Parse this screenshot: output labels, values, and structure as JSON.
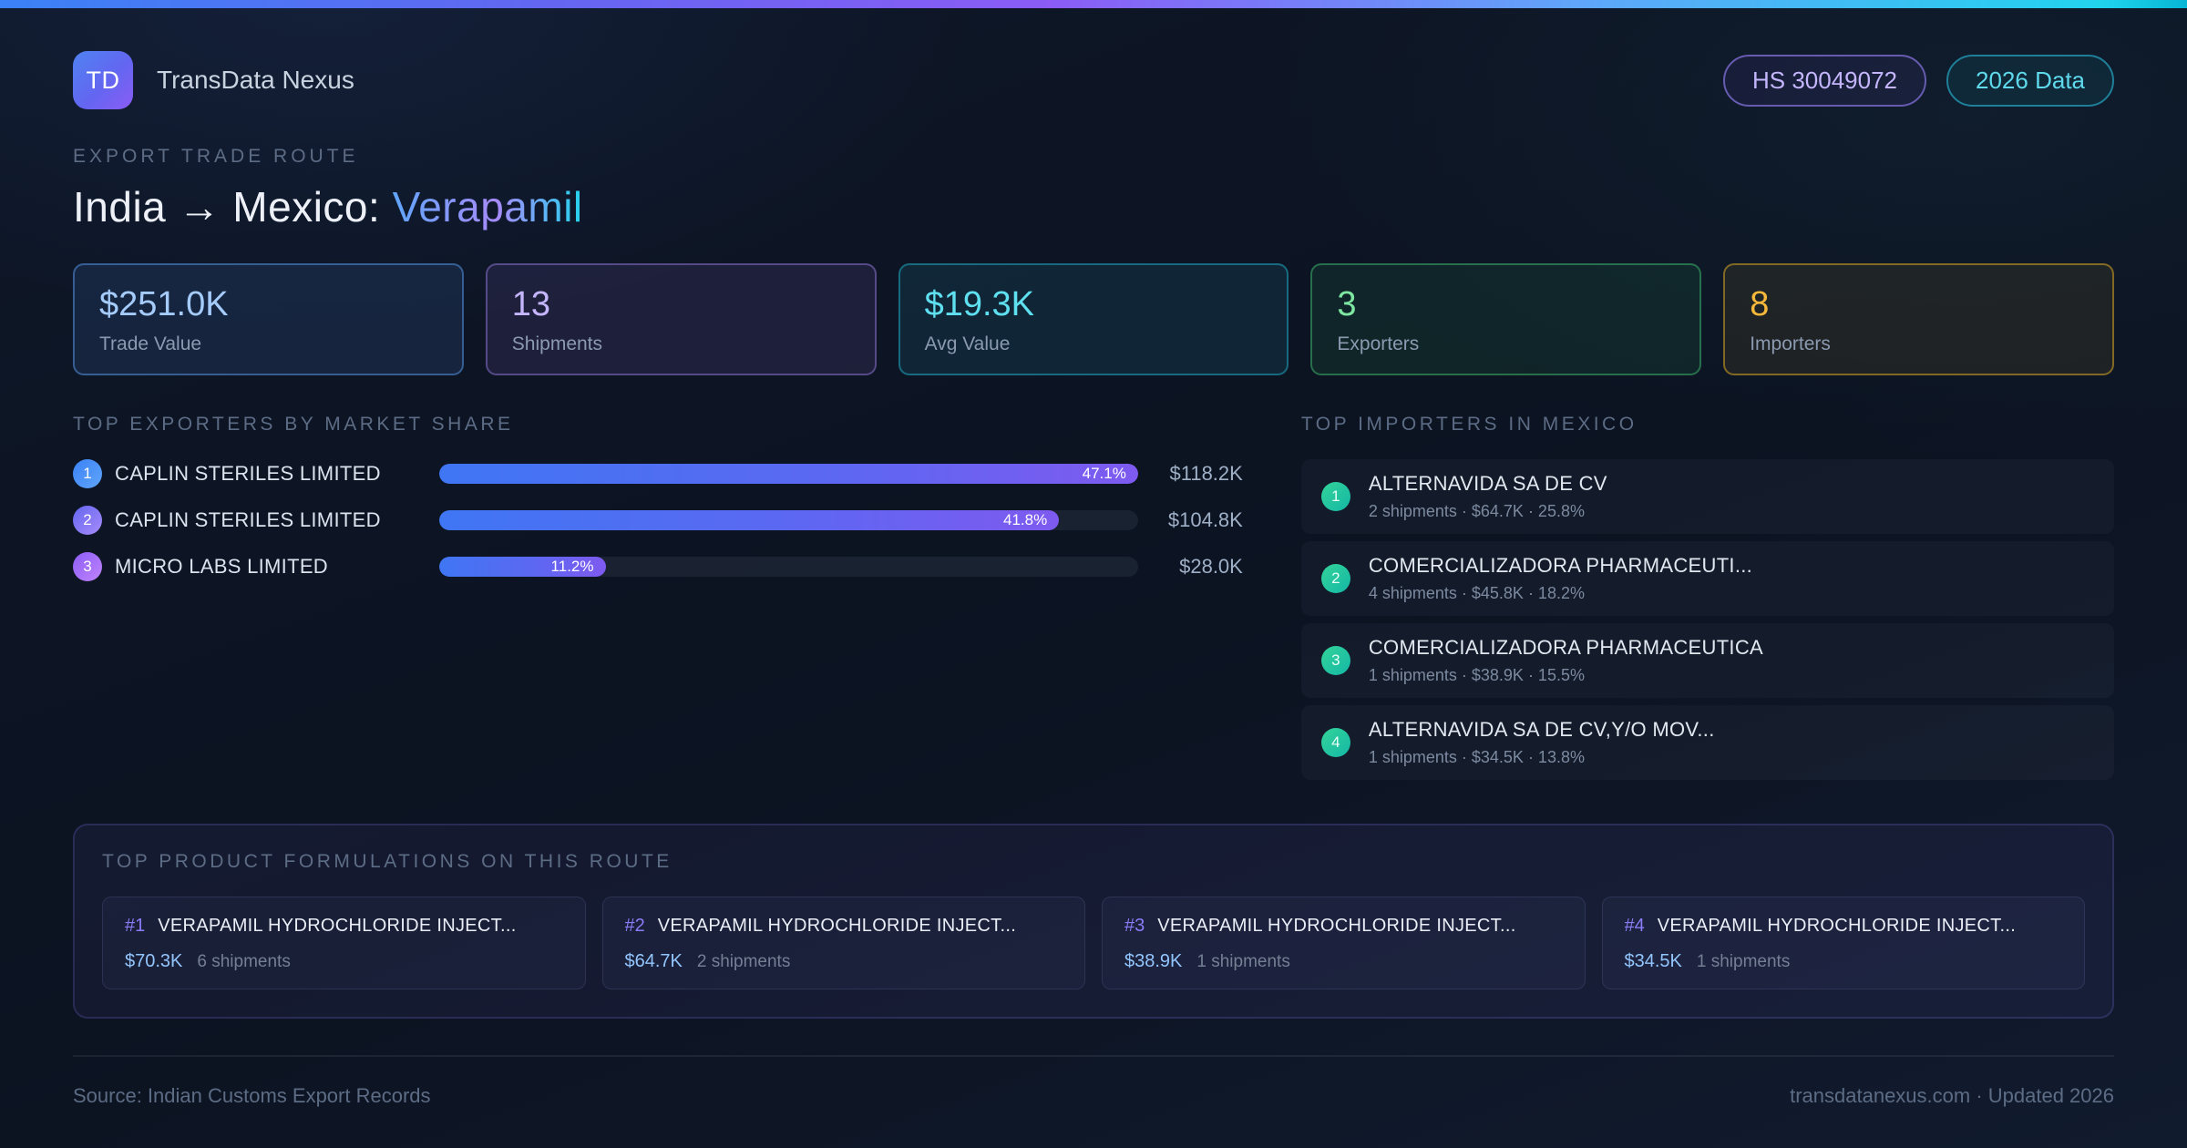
{
  "brand": {
    "logo_text": "TD",
    "name": "TransData Nexus"
  },
  "header_badges": {
    "hs_code": "HS 30049072",
    "year": "2026 Data"
  },
  "route": {
    "eyebrow": "EXPORT TRADE ROUTE",
    "title_prefix": "India → Mexico: ",
    "title_product": "Verapamil"
  },
  "stats": [
    {
      "value": "$251.0K",
      "label": "Trade Value",
      "accent": "#a4cbf9"
    },
    {
      "value": "13",
      "label": "Shipments",
      "accent": "#c4b5fd"
    },
    {
      "value": "$19.3K",
      "label": "Avg Value",
      "accent": "#5fe0f0"
    },
    {
      "value": "3",
      "label": "Exporters",
      "accent": "#7ee8a2"
    },
    {
      "value": "8",
      "label": "Importers",
      "accent": "#f6b83a"
    }
  ],
  "exporters": {
    "heading": "TOP EXPORTERS BY MARKET SHARE",
    "rows": [
      {
        "rank": "1",
        "name": "CAPLIN STERILES LIMITED",
        "pct_label": "47.1%",
        "value": "$118.2K",
        "bar_pct": 100
      },
      {
        "rank": "2",
        "name": "CAPLIN STERILES LIMITED",
        "pct_label": "41.8%",
        "value": "$104.8K",
        "bar_pct": 88.7
      },
      {
        "rank": "3",
        "name": "MICRO LABS LIMITED",
        "pct_label": "11.2%",
        "value": "$28.0K",
        "bar_pct": 23.8
      }
    ]
  },
  "importers": {
    "heading": "TOP IMPORTERS IN MEXICO",
    "rows": [
      {
        "rank": "1",
        "name": "ALTERNAVIDA SA DE CV",
        "meta": "2 shipments · $64.7K · 25.8%"
      },
      {
        "rank": "2",
        "name": "COMERCIALIZADORA PHARMACEUTI...",
        "meta": "4 shipments · $45.8K · 18.2%"
      },
      {
        "rank": "3",
        "name": "COMERCIALIZADORA PHARMACEUTICA",
        "meta": "1 shipments · $38.9K · 15.5%"
      },
      {
        "rank": "4",
        "name": "ALTERNAVIDA SA DE CV,Y/O MOV...",
        "meta": "1 shipments · $34.5K · 13.8%"
      }
    ]
  },
  "products": {
    "heading": "TOP PRODUCT FORMULATIONS ON THIS ROUTE",
    "cards": [
      {
        "rank": "#1",
        "name": "VERAPAMIL HYDROCHLORIDE INJECT...",
        "value": "$70.3K",
        "shipments": "6 shipments"
      },
      {
        "rank": "#2",
        "name": "VERAPAMIL HYDROCHLORIDE INJECT...",
        "value": "$64.7K",
        "shipments": "2 shipments"
      },
      {
        "rank": "#3",
        "name": "VERAPAMIL HYDROCHLORIDE INJECT...",
        "value": "$38.9K",
        "shipments": "1 shipments"
      },
      {
        "rank": "#4",
        "name": "VERAPAMIL HYDROCHLORIDE INJECT...",
        "value": "$34.5K",
        "shipments": "1 shipments"
      }
    ]
  },
  "footer": {
    "source": "Source: Indian Customs Export Records",
    "site": "transdatanexus.com · Updated 2026"
  },
  "colors": {
    "accent_blue": "#3b82f6",
    "accent_purple": "#8b5cf6",
    "accent_cyan": "#22d3ee",
    "accent_green": "#34d399",
    "accent_amber": "#fbbf24",
    "background": "#0d1526"
  }
}
